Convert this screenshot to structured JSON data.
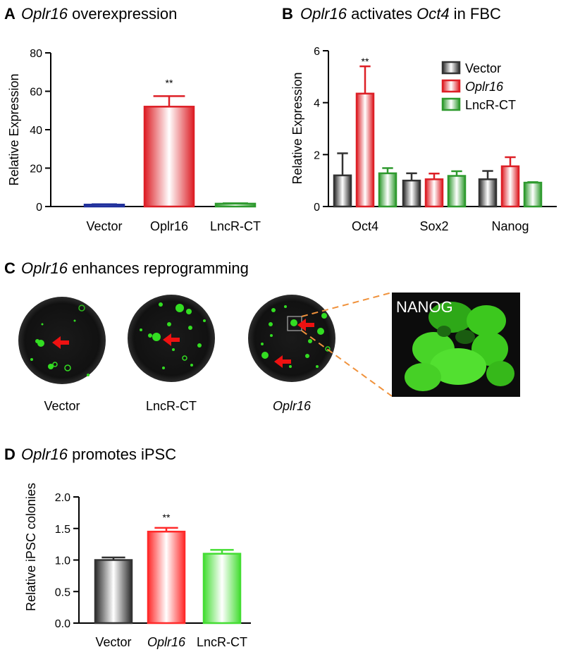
{
  "colors": {
    "black": "#333333",
    "red": "#dd1f26",
    "green": "#2e9a2e",
    "blue": "#1f2f9a",
    "bright_red": "#ff2a2a",
    "bright_green": "#44dd33",
    "orange": "#f0923c",
    "arrow": "#ee1111"
  },
  "panelA": {
    "letter": "A",
    "title_italic": "Oplr16",
    "title_rest": " overexpression"
  },
  "panelB": {
    "letter": "B",
    "title_italic1": "Oplr16",
    "title_mid": " activates ",
    "title_italic2": "Oct4",
    "title_rest": " in FBC"
  },
  "panelC": {
    "letter": "C",
    "title_italic": "Oplr16",
    "title_rest": " enhances reprogramming",
    "labels": [
      "Vector",
      "LncR-CT",
      "Oplr16"
    ],
    "inset_label": "NANOG"
  },
  "panelD": {
    "letter": "D",
    "title_italic": "Oplr16",
    "title_rest": " promotes iPSC"
  },
  "chart_data": [
    {
      "id": "A",
      "type": "bar",
      "ylabel": "Relative Expression",
      "ylim": [
        0,
        80
      ],
      "yticks": [
        "0",
        "20",
        "40",
        "60",
        "80"
      ],
      "categories": [
        "Vector",
        "Oplr16",
        "LncR-CT"
      ],
      "values": [
        1.0,
        52,
        1.5
      ],
      "errors": [
        0.2,
        5.5,
        0.2
      ],
      "significance": [
        "",
        "**",
        ""
      ],
      "colors": [
        "blue",
        "red",
        "green"
      ]
    },
    {
      "id": "B",
      "type": "bar",
      "ylabel": "Relative Expression",
      "ylim": [
        0,
        6
      ],
      "yticks": [
        "0",
        "2",
        "4",
        "6"
      ],
      "categories": [
        "Oct4",
        "Sox2",
        "Nanog"
      ],
      "legend_position": "top-right",
      "series": [
        {
          "name": "Vector",
          "values": [
            1.2,
            1.0,
            1.05
          ],
          "errors": [
            0.85,
            0.28,
            0.32
          ],
          "color": "black"
        },
        {
          "name": "Oplr16",
          "values": [
            4.35,
            1.05,
            1.55
          ],
          "errors": [
            1.05,
            0.22,
            0.35
          ],
          "color": "red",
          "italic": true
        },
        {
          "name": "LncR-CT",
          "values": [
            1.28,
            1.18,
            0.92
          ],
          "errors": [
            0.2,
            0.18,
            0.02
          ],
          "color": "green"
        }
      ],
      "significance": [
        [
          "",
          "**",
          ""
        ],
        [
          "",
          "",
          ""
        ],
        [
          "",
          "",
          ""
        ]
      ]
    },
    {
      "id": "D",
      "type": "bar",
      "ylabel": "Relative iPSC colonies",
      "ylim": [
        0,
        2.0
      ],
      "yticks": [
        "0.0",
        "0.5",
        "1.0",
        "1.5",
        "2.0"
      ],
      "categories": [
        "Vector",
        "Oplr16",
        "LncR-CT"
      ],
      "category_italic": [
        false,
        true,
        false
      ],
      "values": [
        1.0,
        1.45,
        1.1
      ],
      "errors": [
        0.04,
        0.06,
        0.06
      ],
      "significance": [
        "",
        "**",
        ""
      ],
      "colors": [
        "black",
        "bright_red",
        "bright_green"
      ]
    }
  ]
}
